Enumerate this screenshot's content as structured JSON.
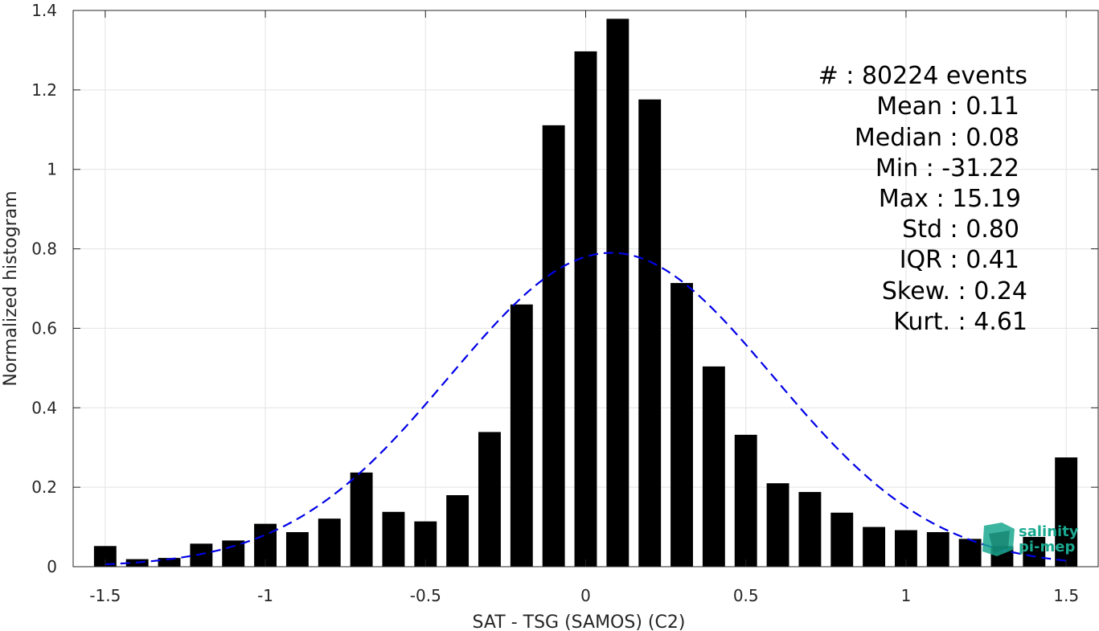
{
  "chart_data": {
    "type": "bar",
    "xlabel": "SAT - TSG (SAMOS) (C2)",
    "ylabel": "Normalized histogram",
    "xlim": [
      -1.6,
      1.6
    ],
    "ylim": [
      0,
      1.4
    ],
    "xticks": [
      -1.5,
      -1,
      -0.5,
      0,
      0.5,
      1,
      1.5
    ],
    "xtick_labels": [
      "-1.5",
      "-1",
      "-0.5",
      "0",
      "0.5",
      "1",
      "1.5"
    ],
    "yticks": [
      0,
      0.2,
      0.4,
      0.6,
      0.8,
      1,
      1.2,
      1.4
    ],
    "ytick_labels": [
      "0",
      "0.2",
      "0.4",
      "0.6",
      "0.8",
      "1",
      "1.2",
      "1.4"
    ],
    "grid": true,
    "bar_color": "#000000",
    "bar_width": 0.07,
    "series": [
      {
        "x": [
          -1.5,
          -1.4,
          -1.3,
          -1.2,
          -1.1,
          -1.0,
          -0.9,
          -0.8,
          -0.7,
          -0.6,
          -0.5,
          -0.4,
          -0.3,
          -0.2,
          -0.1,
          0.0,
          0.1,
          0.2,
          0.3,
          0.4,
          0.5,
          0.6,
          0.7,
          0.8,
          0.9,
          1.0,
          1.1,
          1.2,
          1.3,
          1.4,
          1.5
        ],
        "values": [
          0.052,
          0.019,
          0.022,
          0.058,
          0.066,
          0.108,
          0.087,
          0.121,
          0.237,
          0.138,
          0.114,
          0.18,
          0.339,
          0.66,
          1.111,
          1.297,
          1.379,
          1.176,
          0.714,
          0.504,
          0.332,
          0.21,
          0.188,
          0.136,
          0.1,
          0.092,
          0.087,
          0.07,
          0.052,
          0.075,
          0.275
        ]
      }
    ],
    "fit_curve": {
      "type": "normal",
      "mean": 0.08,
      "std": 0.505,
      "color": "#0000e6",
      "style": "dashed"
    },
    "stats_lines": [
      "#  : 80224 events",
      "Mean : 0.11",
      "Median : 0.08",
      "Min : -31.22",
      "Max : 15.19",
      "Std : 0.80",
      "IQR : 0.41",
      "Skew. : 0.24",
      "Kurt. : 4.61"
    ]
  },
  "logo": {
    "line1": "salinity",
    "line2": "pi-mep",
    "color": "#1aa88f"
  }
}
